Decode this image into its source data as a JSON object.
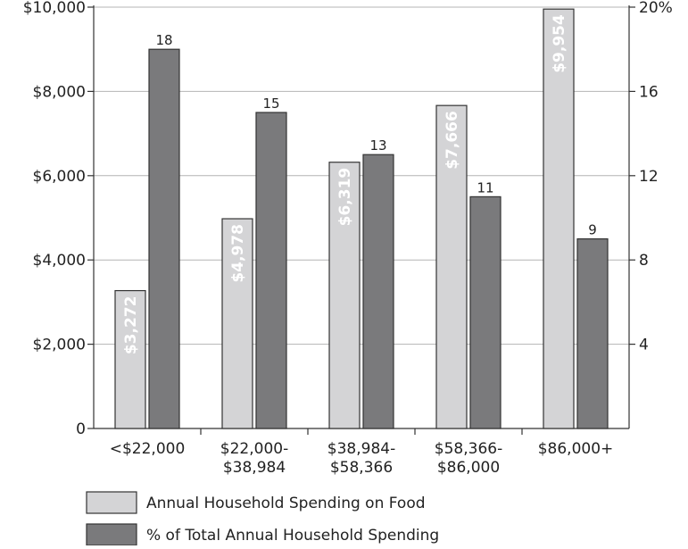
{
  "chart_data": {
    "type": "bar",
    "categories": [
      [
        "<$22,000"
      ],
      [
        "$22,000-",
        "$38,984"
      ],
      [
        "$38,984-",
        "$58,366"
      ],
      [
        "$58,366-",
        "$86,000"
      ],
      [
        "$86,000+"
      ]
    ],
    "series": [
      {
        "name": "Annual Household Spending on Food",
        "axis": "left",
        "color": "#d4d4d6",
        "values": [
          3272,
          4978,
          6319,
          7666,
          9954
        ],
        "labels": [
          "$3,272",
          "$4,978",
          "$6,319",
          "$7,666",
          "$9,954"
        ]
      },
      {
        "name": "% of Total Annual Household Spending",
        "axis": "right",
        "color": "#7a7a7c",
        "values": [
          18,
          15,
          13,
          11,
          9
        ],
        "labels": [
          "18",
          "15",
          "13",
          "11",
          "9"
        ]
      }
    ],
    "y_left": {
      "ylim": [
        0,
        10000
      ],
      "ticks": [
        0,
        2000,
        4000,
        6000,
        8000,
        10000
      ],
      "tick_labels": [
        "0",
        "$2,000",
        "$4,000",
        "$6,000",
        "$8,000",
        "$10,000"
      ]
    },
    "y_right": {
      "ylim": [
        0,
        20
      ],
      "ticks": [
        4,
        8,
        12,
        16,
        20
      ],
      "tick_labels": [
        "4",
        "8",
        "12",
        "16",
        "20%"
      ]
    },
    "grid": true,
    "legend_position": "bottom"
  }
}
